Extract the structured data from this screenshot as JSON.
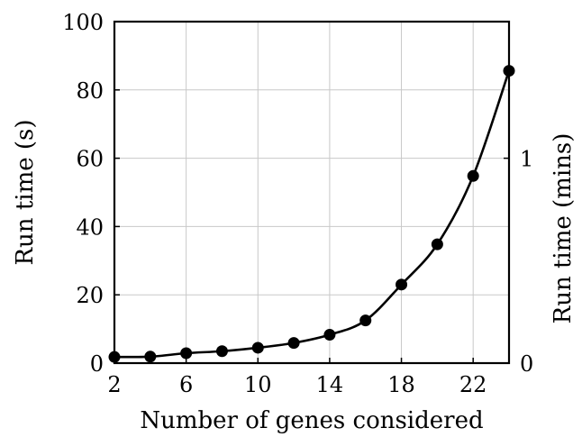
{
  "chart_data": {
    "type": "line",
    "title": "",
    "xlabel": "Number of genes considered",
    "ylabel": "Run time (s)",
    "y2label": "Run time (mins)",
    "xlim": [
      2,
      24
    ],
    "ylim": [
      0,
      100
    ],
    "y2lim": [
      0,
      1.6667
    ],
    "grid": true,
    "x_ticks": [
      2,
      6,
      10,
      14,
      18,
      22
    ],
    "y_ticks": [
      0,
      20,
      40,
      60,
      80,
      100
    ],
    "y2_ticks": [
      0,
      1
    ],
    "x_tick_labels": [
      "2",
      "6",
      "10",
      "14",
      "18",
      "22"
    ],
    "y_tick_labels": [
      "0",
      "20",
      "40",
      "60",
      "80",
      "100"
    ],
    "y2_tick_labels": [
      "0",
      "1"
    ],
    "series": [
      {
        "x": [
          2,
          4,
          6,
          8,
          10,
          12,
          14,
          16,
          18,
          20,
          22,
          24
        ],
        "values": [
          1.8,
          1.9,
          2.9,
          3.5,
          4.5,
          5.9,
          8.3,
          12.5,
          23.0,
          34.8,
          54.8,
          85.6
        ],
        "color": "#000000"
      }
    ]
  }
}
